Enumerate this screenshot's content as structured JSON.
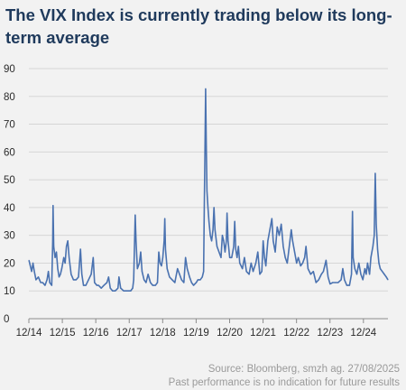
{
  "title": "The VIX Index is currently trading below its long-term average",
  "source_line1": "Source: Bloomberg, smzh ag. 27/08/2025",
  "source_line2": "Past performance is no indication for future results",
  "chart_data": {
    "type": "line",
    "title": "The VIX Index is currently trading below its long-term average",
    "xlabel": "",
    "ylabel": "",
    "ylim": [
      0,
      90
    ],
    "yticks": [
      0,
      10,
      20,
      30,
      40,
      50,
      60,
      70,
      80,
      90
    ],
    "xlim": [
      2014.917,
      2025.65
    ],
    "xticks": [
      {
        "label": "12/14",
        "x": 2014.917
      },
      {
        "label": "12/15",
        "x": 2015.917
      },
      {
        "label": "12/16",
        "x": 2016.917
      },
      {
        "label": "12/17",
        "x": 2017.917
      },
      {
        "label": "12/18",
        "x": 2018.917
      },
      {
        "label": "12/19",
        "x": 2019.917
      },
      {
        "label": "12/20",
        "x": 2020.917
      },
      {
        "label": "12/21",
        "x": 2021.917
      },
      {
        "label": "12/22",
        "x": 2022.917
      },
      {
        "label": "12/23",
        "x": 2023.917
      },
      {
        "label": "12/24",
        "x": 2024.917
      }
    ],
    "grid": "horizontal",
    "line_color": "#4a72b0",
    "series": [
      {
        "name": "",
        "points": [
          [
            2014.92,
            21
          ],
          [
            2014.96,
            19
          ],
          [
            2015.0,
            17
          ],
          [
            2015.04,
            20
          ],
          [
            2015.08,
            17
          ],
          [
            2015.13,
            14
          ],
          [
            2015.2,
            15
          ],
          [
            2015.27,
            13
          ],
          [
            2015.33,
            13
          ],
          [
            2015.4,
            12
          ],
          [
            2015.46,
            14
          ],
          [
            2015.5,
            17
          ],
          [
            2015.54,
            13
          ],
          [
            2015.6,
            12
          ],
          [
            2015.63,
            28
          ],
          [
            2015.64,
            40.7
          ],
          [
            2015.66,
            26
          ],
          [
            2015.7,
            22
          ],
          [
            2015.74,
            24
          ],
          [
            2015.78,
            18
          ],
          [
            2015.82,
            15
          ],
          [
            2015.86,
            16
          ],
          [
            2015.9,
            18
          ],
          [
            2015.96,
            22
          ],
          [
            2016.0,
            20
          ],
          [
            2016.04,
            26
          ],
          [
            2016.08,
            28
          ],
          [
            2016.12,
            22
          ],
          [
            2016.18,
            16
          ],
          [
            2016.25,
            14
          ],
          [
            2016.33,
            14
          ],
          [
            2016.4,
            15
          ],
          [
            2016.46,
            25
          ],
          [
            2016.5,
            16
          ],
          [
            2016.55,
            12
          ],
          [
            2016.62,
            12
          ],
          [
            2016.7,
            14
          ],
          [
            2016.78,
            16
          ],
          [
            2016.84,
            22
          ],
          [
            2016.88,
            13
          ],
          [
            2016.95,
            12
          ],
          [
            2017.0,
            12
          ],
          [
            2017.08,
            11
          ],
          [
            2017.16,
            12
          ],
          [
            2017.25,
            13
          ],
          [
            2017.3,
            15
          ],
          [
            2017.35,
            11
          ],
          [
            2017.42,
            10
          ],
          [
            2017.5,
            10
          ],
          [
            2017.58,
            11
          ],
          [
            2017.61,
            15
          ],
          [
            2017.66,
            11
          ],
          [
            2017.75,
            10
          ],
          [
            2017.83,
            10
          ],
          [
            2017.9,
            10
          ],
          [
            2017.96,
            10
          ],
          [
            2018.02,
            11
          ],
          [
            2018.05,
            14
          ],
          [
            2018.095,
            37.3
          ],
          [
            2018.12,
            28
          ],
          [
            2018.16,
            18
          ],
          [
            2018.22,
            20
          ],
          [
            2018.26,
            24
          ],
          [
            2018.3,
            17
          ],
          [
            2018.36,
            14
          ],
          [
            2018.42,
            13
          ],
          [
            2018.48,
            16
          ],
          [
            2018.55,
            13
          ],
          [
            2018.62,
            12
          ],
          [
            2018.7,
            12
          ],
          [
            2018.76,
            13
          ],
          [
            2018.8,
            24
          ],
          [
            2018.84,
            20
          ],
          [
            2018.88,
            19
          ],
          [
            2018.92,
            22
          ],
          [
            2018.96,
            28
          ],
          [
            2018.98,
            36
          ],
          [
            2019.0,
            25
          ],
          [
            2019.05,
            18
          ],
          [
            2019.12,
            15
          ],
          [
            2019.2,
            14
          ],
          [
            2019.28,
            13
          ],
          [
            2019.36,
            18
          ],
          [
            2019.42,
            16
          ],
          [
            2019.48,
            14
          ],
          [
            2019.55,
            13
          ],
          [
            2019.6,
            22
          ],
          [
            2019.65,
            18
          ],
          [
            2019.72,
            15
          ],
          [
            2019.78,
            13
          ],
          [
            2019.84,
            12
          ],
          [
            2019.92,
            13
          ],
          [
            2019.97,
            14
          ],
          [
            2020.04,
            14
          ],
          [
            2020.1,
            15
          ],
          [
            2020.14,
            17
          ],
          [
            2020.16,
            40
          ],
          [
            2020.18,
            60
          ],
          [
            2020.2,
            82.7
          ],
          [
            2020.22,
            62
          ],
          [
            2020.24,
            46
          ],
          [
            2020.27,
            40
          ],
          [
            2020.3,
            35
          ],
          [
            2020.34,
            30
          ],
          [
            2020.38,
            28
          ],
          [
            2020.42,
            32
          ],
          [
            2020.45,
            40
          ],
          [
            2020.48,
            32
          ],
          [
            2020.54,
            26
          ],
          [
            2020.6,
            24
          ],
          [
            2020.66,
            22
          ],
          [
            2020.7,
            30
          ],
          [
            2020.74,
            28
          ],
          [
            2020.78,
            24
          ],
          [
            2020.82,
            28
          ],
          [
            2020.84,
            38
          ],
          [
            2020.87,
            28
          ],
          [
            2020.92,
            22
          ],
          [
            2020.98,
            22
          ],
          [
            2021.04,
            26
          ],
          [
            2021.07,
            35
          ],
          [
            2021.1,
            25
          ],
          [
            2021.14,
            22
          ],
          [
            2021.18,
            26
          ],
          [
            2021.22,
            20
          ],
          [
            2021.3,
            18
          ],
          [
            2021.36,
            22
          ],
          [
            2021.42,
            17
          ],
          [
            2021.5,
            16
          ],
          [
            2021.56,
            20
          ],
          [
            2021.62,
            17
          ],
          [
            2021.7,
            20
          ],
          [
            2021.76,
            24
          ],
          [
            2021.82,
            16
          ],
          [
            2021.88,
            17
          ],
          [
            2021.92,
            28
          ],
          [
            2021.96,
            22
          ],
          [
            2022.0,
            19
          ],
          [
            2022.06,
            28
          ],
          [
            2022.12,
            32
          ],
          [
            2022.18,
            36
          ],
          [
            2022.22,
            28
          ],
          [
            2022.28,
            24
          ],
          [
            2022.34,
            33
          ],
          [
            2022.4,
            30
          ],
          [
            2022.46,
            34
          ],
          [
            2022.52,
            26
          ],
          [
            2022.58,
            22
          ],
          [
            2022.64,
            20
          ],
          [
            2022.7,
            26
          ],
          [
            2022.76,
            32
          ],
          [
            2022.8,
            28
          ],
          [
            2022.86,
            24
          ],
          [
            2022.92,
            20
          ],
          [
            2022.97,
            22
          ],
          [
            2023.04,
            19
          ],
          [
            2023.1,
            20
          ],
          [
            2023.16,
            22
          ],
          [
            2023.2,
            26
          ],
          [
            2023.26,
            18
          ],
          [
            2023.34,
            16
          ],
          [
            2023.42,
            17
          ],
          [
            2023.5,
            13
          ],
          [
            2023.58,
            14
          ],
          [
            2023.66,
            16
          ],
          [
            2023.72,
            17
          ],
          [
            2023.8,
            21
          ],
          [
            2023.86,
            15
          ],
          [
            2023.92,
            12.5
          ],
          [
            2024.0,
            13
          ],
          [
            2024.08,
            13
          ],
          [
            2024.16,
            13
          ],
          [
            2024.25,
            14
          ],
          [
            2024.3,
            18
          ],
          [
            2024.35,
            14
          ],
          [
            2024.42,
            12
          ],
          [
            2024.5,
            12
          ],
          [
            2024.56,
            16
          ],
          [
            2024.59,
            38.6
          ],
          [
            2024.61,
            22
          ],
          [
            2024.66,
            18
          ],
          [
            2024.72,
            16
          ],
          [
            2024.78,
            20
          ],
          [
            2024.84,
            16
          ],
          [
            2024.9,
            14
          ],
          [
            2024.96,
            18
          ],
          [
            2025.0,
            16
          ],
          [
            2025.04,
            20
          ],
          [
            2025.1,
            16
          ],
          [
            2025.14,
            22
          ],
          [
            2025.2,
            26
          ],
          [
            2025.24,
            30
          ],
          [
            2025.27,
            52.3
          ],
          [
            2025.3,
            34
          ],
          [
            2025.34,
            25
          ],
          [
            2025.38,
            20
          ],
          [
            2025.42,
            18
          ],
          [
            2025.48,
            17
          ],
          [
            2025.54,
            16
          ],
          [
            2025.6,
            15
          ],
          [
            2025.65,
            14
          ]
        ]
      }
    ]
  }
}
